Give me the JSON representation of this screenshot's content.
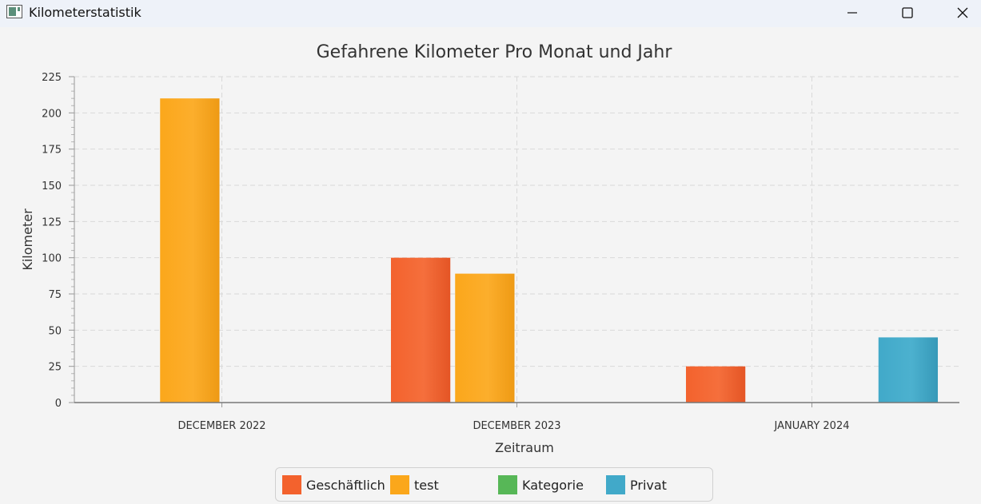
{
  "window": {
    "title": "Kilometerstatistik",
    "app_icon": "window-icon",
    "controls": [
      "minimize-icon",
      "maximize-icon",
      "close-icon"
    ]
  },
  "chart_data": {
    "type": "bar",
    "title": "Gefahrene Kilometer Pro Monat und Jahr",
    "xlabel": "Zeitraum",
    "ylabel": "Kilometer",
    "categories": [
      "DECEMBER 2022",
      "DECEMBER 2023",
      "JANUARY 2024"
    ],
    "ylim": [
      0,
      225
    ],
    "yticks": [
      "0",
      "25",
      "50",
      "75",
      "100",
      "125",
      "150",
      "175",
      "200",
      "225"
    ],
    "series": [
      {
        "name": "Geschäftlich",
        "color": "#f3622d",
        "values": [
          null,
          100,
          25
        ]
      },
      {
        "name": "test",
        "color": "#fba71b",
        "values": [
          210,
          89,
          null
        ]
      },
      {
        "name": "Kategorie",
        "color": "#57b757",
        "values": [
          null,
          null,
          null
        ]
      },
      {
        "name": "Privat",
        "color": "#41a9c9",
        "values": [
          null,
          null,
          45
        ]
      }
    ],
    "grid": true,
    "legend_position": "bottom"
  }
}
